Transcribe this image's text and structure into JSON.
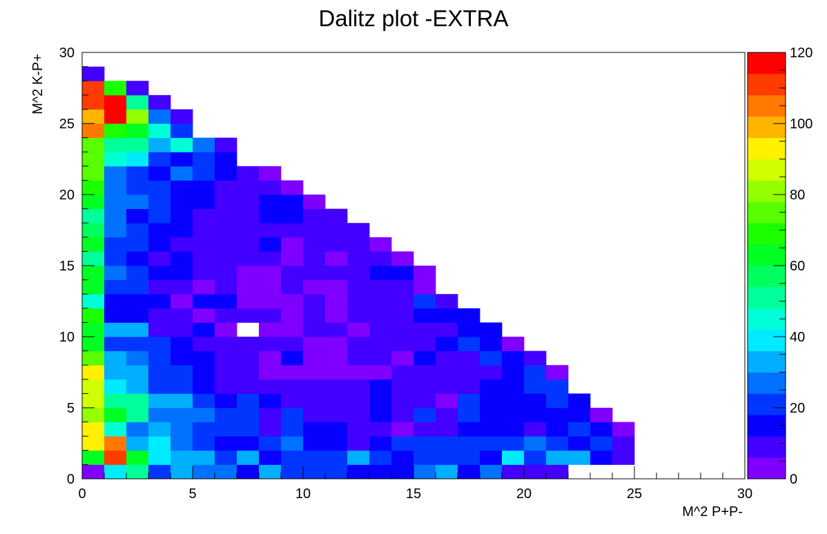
{
  "chart_data": {
    "type": "heatmap",
    "title": "Dalitz plot -EXTRA",
    "xlabel": "M^2 P+P-",
    "ylabel": "M^2 K-P+",
    "xlim": [
      0,
      30
    ],
    "ylim": [
      0,
      30
    ],
    "bin_width": 1,
    "x_ticks": [
      0,
      5,
      10,
      15,
      20,
      25,
      30
    ],
    "y_ticks": [
      0,
      5,
      10,
      15,
      20,
      25,
      30
    ],
    "colorbar": {
      "min": 0,
      "max": 120,
      "ticks": [
        0,
        20,
        40,
        60,
        80,
        100,
        120
      ],
      "palette": "rainbow"
    },
    "rows": [
      {
        "y": 0,
        "values": [
          5,
          38,
          52,
          22,
          30,
          28,
          28,
          15,
          30,
          20,
          20,
          20,
          15,
          15,
          15,
          28,
          32,
          15,
          25,
          10,
          8,
          8
        ]
      },
      {
        "y": 1,
        "values": [
          62,
          112,
          64,
          40,
          30,
          35,
          22,
          30,
          15,
          22,
          22,
          22,
          30,
          22,
          15,
          22,
          22,
          22,
          15,
          38,
          22,
          30,
          35,
          15,
          10
        ]
      },
      {
        "y": 2,
        "values": [
          90,
          102,
          30,
          40,
          28,
          22,
          15,
          15,
          22,
          28,
          15,
          15,
          8,
          15,
          22,
          22,
          22,
          22,
          22,
          22,
          28,
          22,
          15,
          22,
          8
        ]
      },
      {
        "y": 3,
        "values": [
          92,
          46,
          28,
          30,
          28,
          22,
          22,
          22,
          10,
          22,
          15,
          15,
          10,
          10,
          5,
          10,
          10,
          15,
          15,
          15,
          8,
          15,
          20,
          15,
          5
        ]
      },
      {
        "y": 4,
        "values": [
          80,
          60,
          52,
          28,
          28,
          28,
          22,
          22,
          10,
          22,
          10,
          10,
          10,
          15,
          10,
          22,
          10,
          22,
          15,
          15,
          15,
          15,
          15,
          5
        ]
      },
      {
        "y": 5,
        "values": [
          86,
          48,
          50,
          35,
          30,
          22,
          15,
          22,
          15,
          10,
          10,
          10,
          10,
          15,
          8,
          8,
          5,
          22,
          15,
          15,
          15,
          20,
          15
        ]
      },
      {
        "y": 6,
        "values": [
          88,
          40,
          30,
          22,
          22,
          15,
          10,
          10,
          10,
          8,
          8,
          8,
          8,
          15,
          8,
          8,
          8,
          8,
          15,
          15,
          22,
          22
        ]
      },
      {
        "y": 7,
        "values": [
          90,
          30,
          30,
          22,
          22,
          15,
          10,
          10,
          5,
          5,
          5,
          5,
          5,
          5,
          8,
          8,
          8,
          8,
          10,
          15,
          22,
          5
        ]
      },
      {
        "y": 8,
        "values": [
          72,
          32,
          28,
          22,
          15,
          15,
          10,
          10,
          5,
          15,
          5,
          5,
          8,
          10,
          5,
          15,
          8,
          8,
          22,
          15,
          10
        ]
      },
      {
        "y": 9,
        "values": [
          60,
          22,
          22,
          22,
          15,
          10,
          10,
          10,
          8,
          8,
          5,
          5,
          10,
          10,
          10,
          10,
          15,
          22,
          15,
          5
        ]
      },
      {
        "y": 10,
        "values": [
          64,
          30,
          30,
          10,
          10,
          15,
          5,
          null,
          5,
          5,
          8,
          8,
          5,
          10,
          10,
          10,
          10,
          15,
          15
        ]
      },
      {
        "y": 11,
        "values": [
          66,
          15,
          15,
          10,
          10,
          5,
          10,
          10,
          10,
          5,
          10,
          5,
          10,
          10,
          10,
          15,
          15,
          15
        ]
      },
      {
        "y": 12,
        "values": [
          42,
          15,
          15,
          15,
          5,
          15,
          15,
          5,
          5,
          5,
          10,
          5,
          10,
          10,
          10,
          22,
          10
        ]
      },
      {
        "y": 13,
        "values": [
          60,
          22,
          22,
          10,
          10,
          5,
          10,
          5,
          5,
          10,
          5,
          5,
          10,
          10,
          10,
          5
        ]
      },
      {
        "y": 14,
        "values": [
          62,
          28,
          22,
          15,
          15,
          10,
          10,
          5,
          5,
          10,
          10,
          10,
          10,
          15,
          15,
          5
        ]
      },
      {
        "y": 15,
        "values": [
          48,
          22,
          15,
          10,
          15,
          10,
          10,
          10,
          10,
          5,
          10,
          5,
          10,
          10,
          5
        ]
      },
      {
        "y": 16,
        "values": [
          60,
          22,
          22,
          15,
          10,
          10,
          10,
          10,
          15,
          5,
          10,
          10,
          10,
          5
        ]
      },
      {
        "y": 17,
        "values": [
          58,
          28,
          22,
          15,
          15,
          10,
          10,
          10,
          10,
          10,
          10,
          10,
          8
        ]
      },
      {
        "y": 18,
        "values": [
          50,
          28,
          15,
          22,
          15,
          10,
          10,
          10,
          15,
          15,
          10,
          8
        ]
      },
      {
        "y": 19,
        "values": [
          62,
          28,
          28,
          22,
          15,
          15,
          10,
          10,
          15,
          15,
          5
        ]
      },
      {
        "y": 20,
        "values": [
          70,
          28,
          22,
          22,
          15,
          15,
          10,
          10,
          10,
          5
        ]
      },
      {
        "y": 21,
        "values": [
          72,
          28,
          22,
          15,
          28,
          22,
          15,
          10,
          5
        ]
      },
      {
        "y": 22,
        "values": [
          74,
          45,
          40,
          22,
          15,
          20,
          15
        ]
      },
      {
        "y": 23,
        "values": [
          72,
          52,
          52,
          35,
          42,
          28,
          10
        ]
      },
      {
        "y": 24,
        "values": [
          102,
          68,
          65,
          45,
          22
        ]
      },
      {
        "y": 25,
        "values": [
          98,
          118,
          80,
          28,
          8
        ]
      },
      {
        "y": 26,
        "values": [
          112,
          118,
          50,
          8
        ]
      },
      {
        "y": 27,
        "values": [
          112,
          70,
          8
        ]
      },
      {
        "y": 28,
        "values": [
          8
        ]
      }
    ]
  }
}
